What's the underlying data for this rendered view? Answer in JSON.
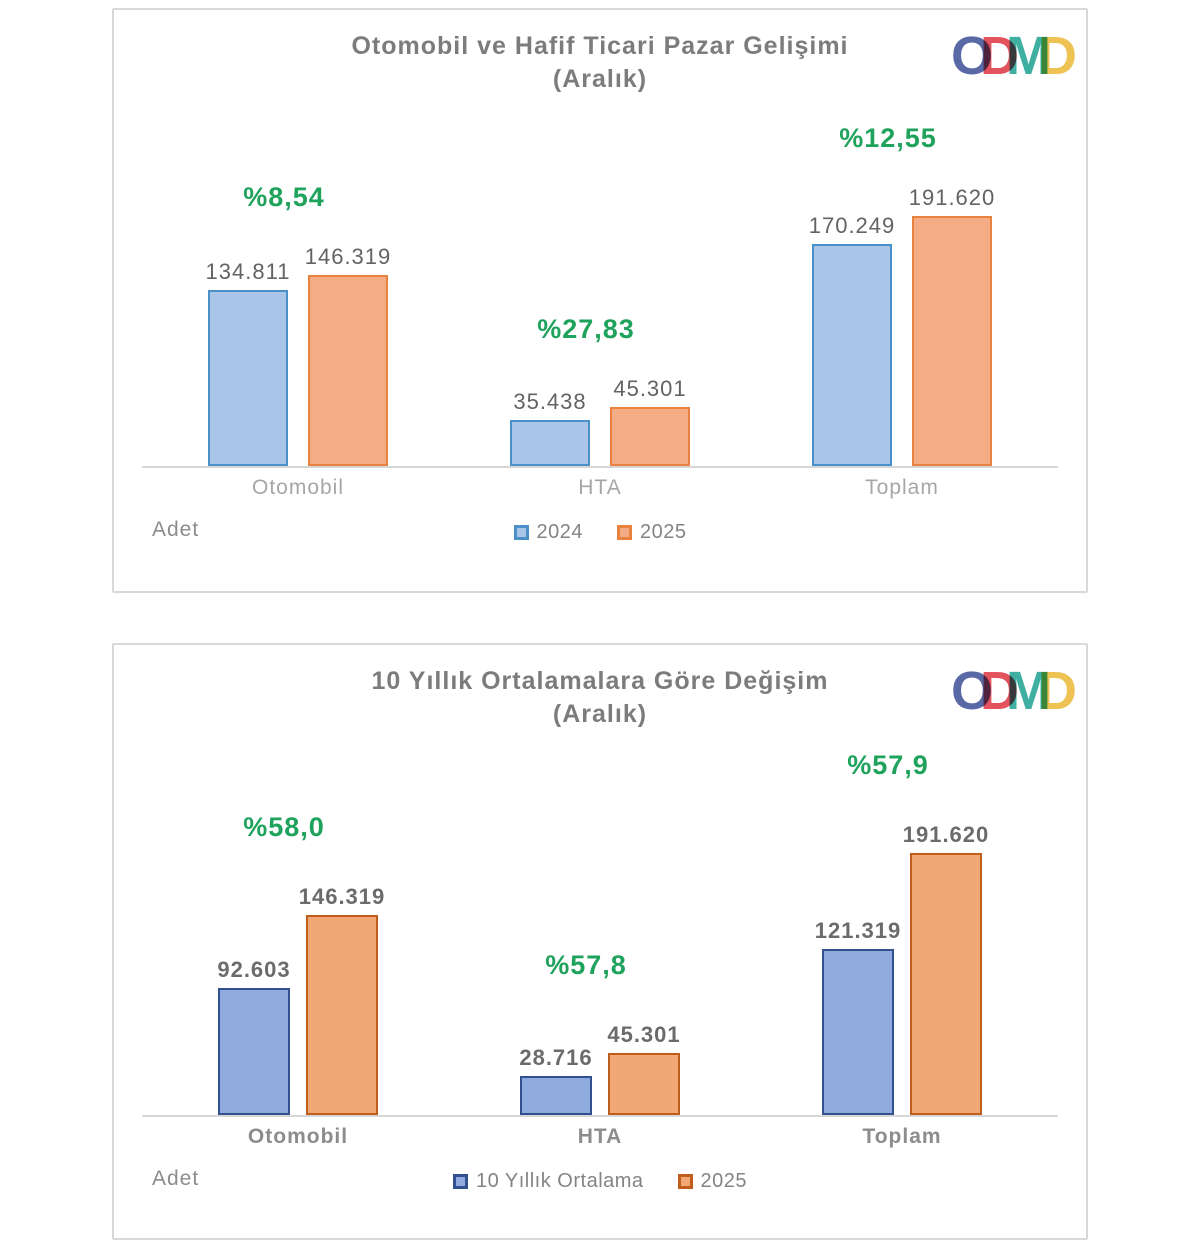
{
  "logo": {
    "letters": [
      {
        "char": "O",
        "color": "#4A5C9E"
      },
      {
        "char": "D",
        "color": "#E14450"
      },
      {
        "char": "M",
        "color": "#2EA89A"
      },
      {
        "char": "D",
        "color": "#EDBE45"
      }
    ]
  },
  "chart_data": [
    {
      "type": "bar",
      "title": "Otomobil ve Hafif Ticari Pazar Gelişimi",
      "subtitle": "(Aralık)",
      "categories": [
        "Otomobil",
        "HTA",
        "Toplam"
      ],
      "series": [
        {
          "name": "2024",
          "values": [
            134811,
            35438,
            170249
          ],
          "fill": "#A9C6E8",
          "border": "#4B90C9"
        },
        {
          "name": "2025",
          "values": [
            146319,
            45301,
            191620
          ],
          "fill": "#F4AC84",
          "border": "#E8823E"
        }
      ],
      "value_labels": [
        [
          "134.811",
          "35.438",
          "170.249"
        ],
        [
          "146.319",
          "45.301",
          "191.620"
        ]
      ],
      "pct_labels": [
        "%8,54",
        "%27,83",
        "%12,55"
      ],
      "axis_label": "Adet",
      "legend": [
        "2024",
        "2025"
      ],
      "ylim": [
        0,
        191620
      ],
      "grid": false,
      "legend_position": "bottom-center"
    },
    {
      "type": "bar",
      "title": "10 Yıllık Ortalamalara Göre Değişim",
      "subtitle": "(Aralık)",
      "categories": [
        "Otomobil",
        "HTA",
        "Toplam"
      ],
      "series": [
        {
          "name": "10 Yıllık Ortalama",
          "values": [
            92603,
            28716,
            121319
          ],
          "fill": "#8FAADC",
          "border": "#32508F"
        },
        {
          "name": "2025",
          "values": [
            146319,
            45301,
            191620
          ],
          "fill": "#F2A876",
          "border": "#BE5D1C"
        }
      ],
      "value_labels": [
        [
          "92.603",
          "28.716",
          "121.319"
        ],
        [
          "146.319",
          "45.301",
          "191.620"
        ]
      ],
      "pct_labels": [
        "%58,0",
        "%57,8",
        "%57,9"
      ],
      "axis_label": "Adet",
      "legend": [
        "10 Yıllık Ortalama",
        "2025"
      ],
      "ylim": [
        0,
        191620
      ],
      "grid": false,
      "legend_position": "bottom-center"
    }
  ]
}
